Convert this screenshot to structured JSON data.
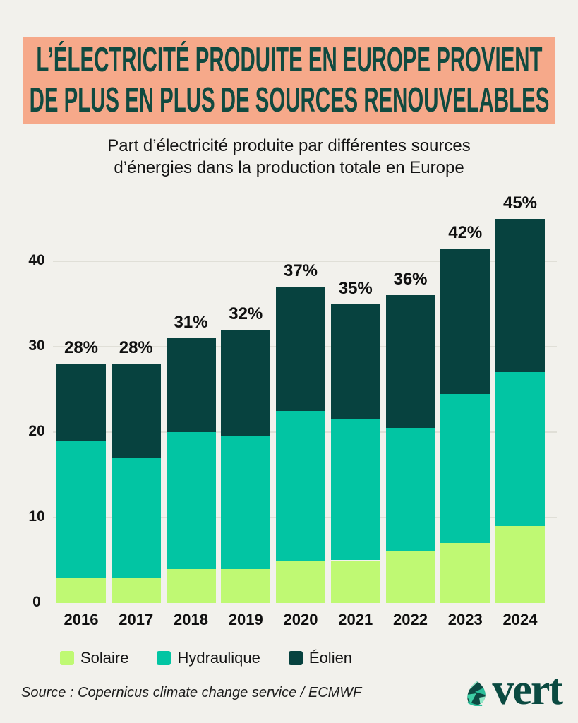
{
  "header": {
    "title_line1": "L’ÉLECTRICITÉ PRODUITE EN EUROPE PROVIENT",
    "title_line2": "DE PLUS EN PLUS DE SOURCES RENOUVELABLES",
    "subtitle_line1": "Part d’électricité produite par différentes sources",
    "subtitle_line2": "d’énergies dans la production totale en Europe",
    "banner_color": "#f6a98a",
    "title_color": "#104a40"
  },
  "chart_data": {
    "type": "bar",
    "stacked": true,
    "title": "Part d’électricité produite par différentes sources d’énergies dans la production totale en Europe",
    "categories": [
      "2016",
      "2017",
      "2018",
      "2019",
      "2020",
      "2021",
      "2022",
      "2023",
      "2024"
    ],
    "series": [
      {
        "name": "Solaire",
        "color": "#bff973",
        "values": [
          3,
          3,
          4,
          4,
          5,
          5,
          6,
          7,
          9
        ]
      },
      {
        "name": "Hydraulique",
        "color": "#02c5a3",
        "values": [
          16,
          14,
          16,
          15.5,
          17.5,
          16.5,
          14.5,
          17.5,
          18
        ]
      },
      {
        "name": "Éolien",
        "color": "#07423f",
        "values": [
          9,
          11,
          11,
          12.5,
          14.5,
          13.5,
          15.5,
          17,
          18
        ]
      }
    ],
    "total_labels": [
      "28%",
      "28%",
      "31%",
      "32%",
      "37%",
      "35%",
      "36%",
      "42%",
      "45%"
    ],
    "y_ticks": [
      0,
      10,
      20,
      30,
      40
    ],
    "ylim": [
      0,
      47
    ],
    "grid": true,
    "legend_position": "bottom",
    "unit": "percent of total electricity production"
  },
  "footer": {
    "source": "Source : Copernicus climate change service / ECMWF",
    "logo_text": "vert",
    "logo_color": "#0b4a41"
  }
}
